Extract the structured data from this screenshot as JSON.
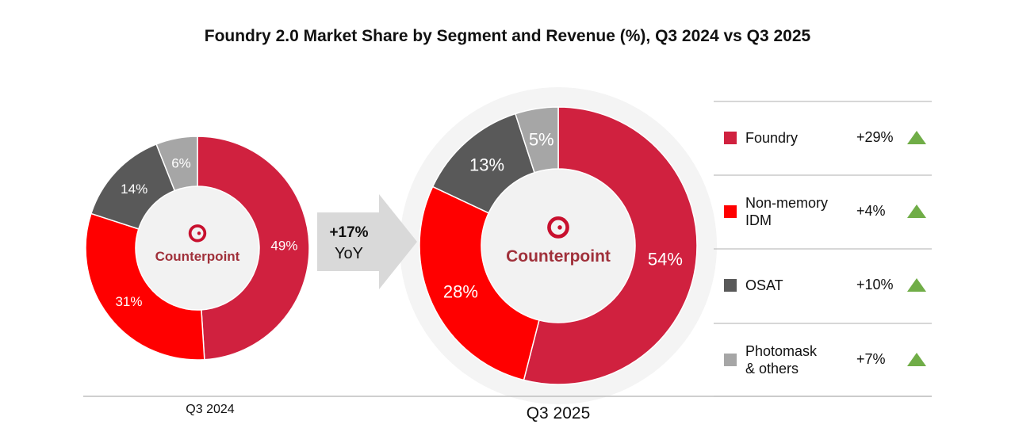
{
  "title": "Foundry 2.0 Market Share by Segment and Revenue (%), Q3 2024 vs Q3 2025",
  "logo_text": "Counterpoint",
  "arrow": {
    "value": "+17%",
    "label": "YoY"
  },
  "chart_data": {
    "type": "pie",
    "title": "Foundry 2.0 Market Share by Segment and Revenue (%), Q3 2024 vs Q3 2025",
    "donut": true,
    "legend_placement": "right",
    "categories": [
      "Foundry",
      "Non-memory IDM",
      "OSAT",
      "Photomask & others"
    ],
    "colors": [
      "#d0213f",
      "#ff0000",
      "#595959",
      "#a6a6a6"
    ],
    "series": [
      {
        "name": "Q3 2024",
        "values": [
          49,
          31,
          14,
          6
        ],
        "labels": [
          "49%",
          "31%",
          "14%",
          "6%"
        ]
      },
      {
        "name": "Q3 2025",
        "values": [
          54,
          28,
          13,
          5
        ],
        "labels": [
          "54%",
          "28%",
          "13%",
          "5%"
        ]
      }
    ],
    "yoy_growth": [
      "+29%",
      "+4%",
      "+10%",
      "+7%"
    ],
    "total_yoy_growth": "+17%"
  },
  "legend": [
    {
      "name_lines": [
        "Foundry"
      ],
      "growth": "+29%",
      "trend": "up-triangle-icon"
    },
    {
      "name_lines": [
        "Non-memory",
        "IDM"
      ],
      "growth": "+4%",
      "trend": "up-triangle-icon"
    },
    {
      "name_lines": [
        "OSAT"
      ],
      "growth": "+10%",
      "trend": "up-triangle-icon"
    },
    {
      "name_lines": [
        "Photomask",
        "& others"
      ],
      "growth": "+7%",
      "trend": "up-triangle-icon"
    }
  ],
  "trend_color": "#70ad47"
}
